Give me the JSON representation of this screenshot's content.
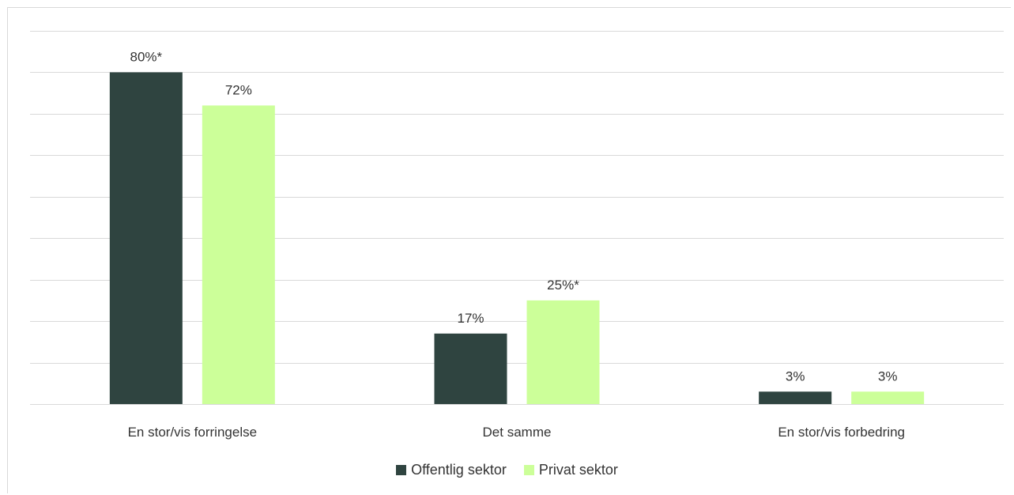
{
  "chart_data": {
    "type": "bar",
    "categories": [
      "En stor/vis forringelse",
      "Det samme",
      "En stor/vis forbedring"
    ],
    "series": [
      {
        "name": "Offentlig sektor",
        "values": [
          80,
          17,
          3
        ],
        "labels": [
          "80%*",
          "17%",
          "3%"
        ],
        "color": "#2f4440"
      },
      {
        "name": "Privat sektor",
        "values": [
          72,
          25,
          3
        ],
        "labels": [
          "72%",
          "25%*",
          "3%"
        ],
        "color": "#ccff99"
      }
    ],
    "ylim": [
      0,
      90
    ],
    "grid": true,
    "legend_position": "bottom"
  }
}
